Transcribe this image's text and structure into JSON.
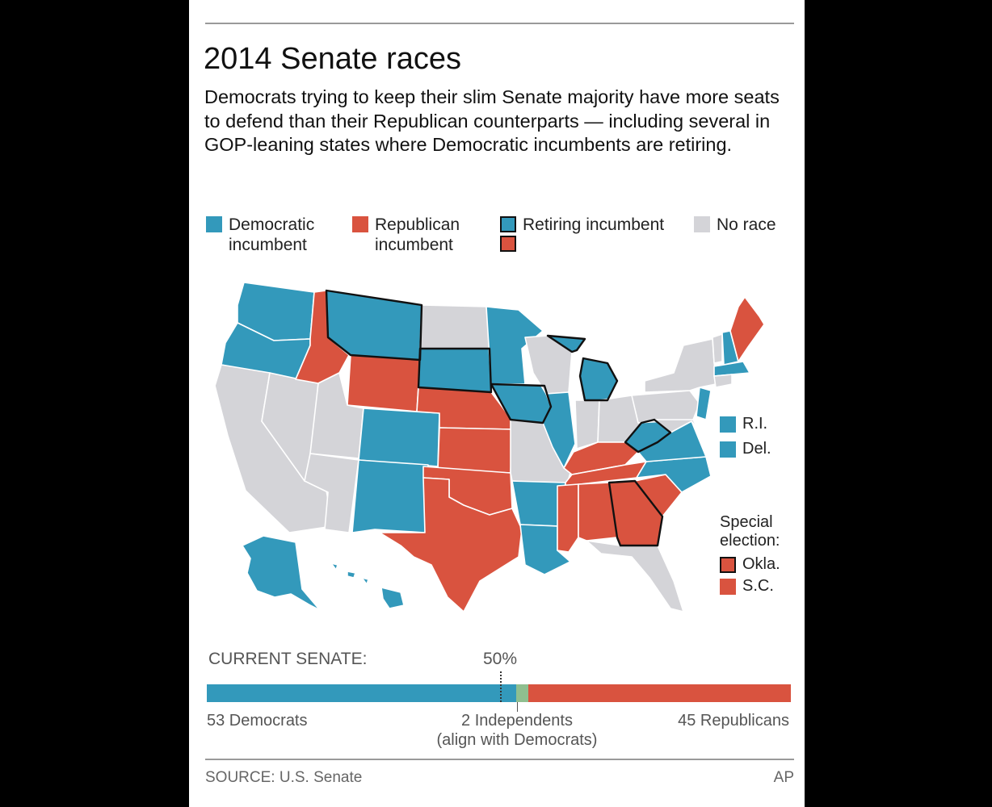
{
  "title": "2014 Senate races",
  "dek": "Democrats trying to keep their slim Senate majority have more seats to defend than their Republican counterparts — including several in GOP-leaning states where Democratic incumbents are retiring.",
  "colors": {
    "democratic": "#3399bb",
    "republican": "#d9533f",
    "no_race": "#d4d4d8",
    "independent": "#8fbf8f",
    "outline": "#111111"
  },
  "legend": {
    "democratic": "Democratic\nincumbent",
    "republican": "Republican\nincumbent",
    "retiring": "Retiring incumbent",
    "no_race": "No race"
  },
  "map_states": {
    "WA": "dem",
    "OR": "dem",
    "ID": "rep",
    "MT": "dem",
    "WY": "rep",
    "CO": "dem",
    "NM": "dem",
    "SD": "dem",
    "NE": "rep",
    "KS": "rep",
    "OK": "rep",
    "TX": "rep",
    "MN": "dem",
    "IA": "dem",
    "AR": "dem",
    "LA": "dem",
    "IL": "dem",
    "MI": "dem",
    "KY": "rep",
    "TN": "rep",
    "MS": "rep",
    "AL": "rep",
    "GA": "rep",
    "SC": "rep",
    "NC": "dem",
    "VA": "dem",
    "WV": "dem",
    "NJ": "dem",
    "NH": "dem",
    "MA": "dem",
    "ME": "rep",
    "AK": "dem",
    "HI": "dem",
    "CA": "none",
    "NV": "none",
    "UT": "none",
    "AZ": "none",
    "ND": "none",
    "WI": "none",
    "MO": "none",
    "IN": "none",
    "OH": "none",
    "PA": "none",
    "NY": "none",
    "VT": "none",
    "CT": "none",
    "MD": "none",
    "FL": "none"
  },
  "retiring_states": [
    "MT",
    "SD",
    "IA",
    "MI",
    "WV",
    "GA"
  ],
  "side_labels": {
    "ri": "R.I.",
    "del": "Del."
  },
  "special_election": {
    "title": "Special\nelection:",
    "okla": "Okla.",
    "sc": "S.C."
  },
  "current_senate": {
    "label": "CURRENT SENATE:",
    "half_label": "50%",
    "democrats": 53,
    "independents": 2,
    "republicans": 45,
    "dem_label": "53 Democrats",
    "ind_label": "2 Independents\n(align with Democrats)",
    "rep_label": "45 Republicans"
  },
  "source": "SOURCE: U.S. Senate",
  "credit": "AP"
}
